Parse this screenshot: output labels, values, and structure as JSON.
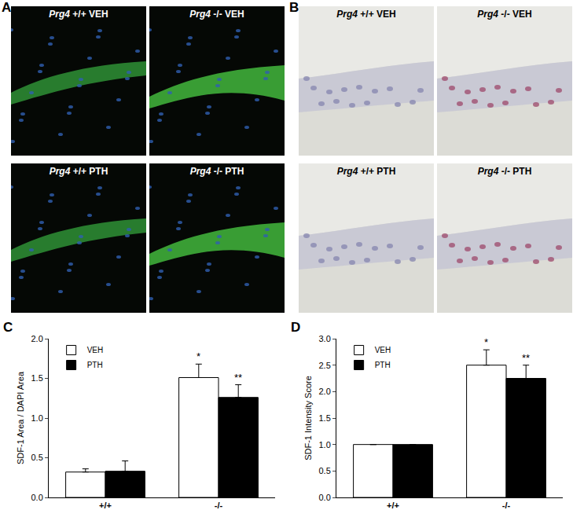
{
  "panels": [
    {
      "label": "A",
      "style": "fluorescence",
      "images": [
        {
          "gene": "Prg4",
          "genotype": "+/+",
          "treatment": "VEH"
        },
        {
          "gene": "Prg4",
          "genotype": "-/-",
          "treatment": "VEH"
        },
        {
          "gene": "Prg4",
          "genotype": "+/+",
          "treatment": "PTH"
        },
        {
          "gene": "Prg4",
          "genotype": "-/-",
          "treatment": "PTH"
        }
      ]
    },
    {
      "label": "B",
      "style": "brightfield",
      "images": [
        {
          "gene": "Prg4",
          "genotype": "+/+",
          "treatment": "VEH"
        },
        {
          "gene": "Prg4",
          "genotype": "-/-",
          "treatment": "VEH"
        },
        {
          "gene": "Prg4",
          "genotype": "+/+",
          "treatment": "PTH"
        },
        {
          "gene": "Prg4",
          "genotype": "-/-",
          "treatment": "PTH"
        }
      ]
    }
  ],
  "chart_data": [
    {
      "label": "C",
      "type": "bar",
      "y_label": "SDF-1 Area / DAPI Area",
      "categories": [
        "+/+",
        "-/-"
      ],
      "series": [
        {
          "name": "VEH",
          "color": "#ffffff",
          "values": [
            0.32,
            1.51
          ],
          "error": [
            0.04,
            0.17
          ]
        },
        {
          "name": "PTH",
          "color": "#000000",
          "values": [
            0.33,
            1.26
          ],
          "error": [
            0.13,
            0.16
          ]
        }
      ],
      "ylim": [
        0,
        2
      ],
      "yticks": [
        {
          "value": 0,
          "label": "0.0"
        },
        {
          "value": 0.5,
          "label": "0.5"
        },
        {
          "value": 1,
          "label": "1.0"
        },
        {
          "value": 1.5,
          "label": "1.5"
        },
        {
          "value": 2,
          "label": "2.0"
        }
      ],
      "grid": false,
      "legend": "upper left",
      "annotations": [
        {
          "text": "*",
          "category": "-/-",
          "series": "VEH"
        },
        {
          "text": "**",
          "category": "-/-",
          "series": "PTH"
        }
      ]
    },
    {
      "label": "D",
      "type": "bar",
      "y_label": "SDF-1 Intensity Score",
      "categories": [
        "+/+",
        "-/-"
      ],
      "series": [
        {
          "name": "VEH",
          "color": "#ffffff",
          "values": [
            1.0,
            2.5
          ],
          "error": [
            0,
            0.29
          ]
        },
        {
          "name": "PTH",
          "color": "#000000",
          "values": [
            1.0,
            2.25
          ],
          "error": [
            0,
            0.25
          ]
        }
      ],
      "ylim": [
        0,
        3
      ],
      "yticks": [
        {
          "value": 0,
          "label": "0.0"
        },
        {
          "value": 0.5,
          "label": "0.5"
        },
        {
          "value": 1,
          "label": "1.0"
        },
        {
          "value": 1.5,
          "label": "1.5"
        },
        {
          "value": 2,
          "label": "2.0"
        },
        {
          "value": 2.5,
          "label": "2.5"
        },
        {
          "value": 3,
          "label": "3.0"
        }
      ],
      "grid": false,
      "legend": "upper left",
      "annotations": [
        {
          "text": "*",
          "category": "-/-",
          "series": "VEH"
        },
        {
          "text": "**",
          "category": "-/-",
          "series": "PTH"
        }
      ]
    }
  ]
}
